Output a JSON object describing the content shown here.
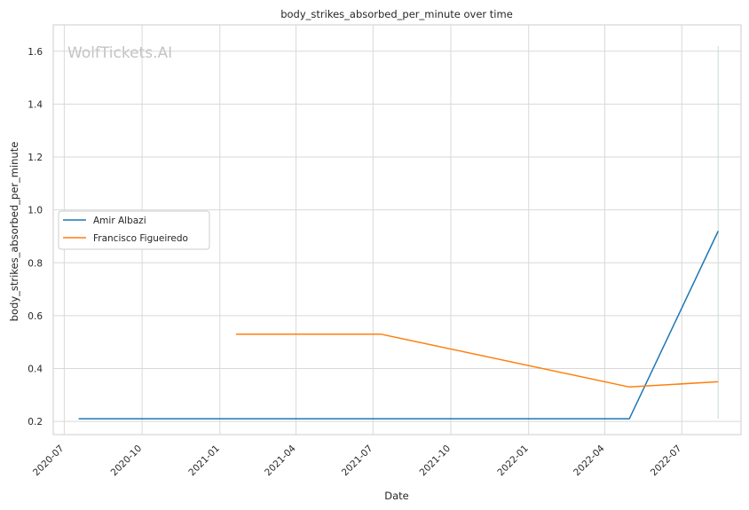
{
  "chart_data": {
    "type": "line",
    "title": "body_strikes_absorbed_per_minute over time",
    "xlabel": "Date",
    "ylabel": "body_strikes_absorbed_per_minute",
    "watermark": "WolfTickets.AI",
    "x_tick_labels": [
      "2020-07",
      "2020-10",
      "2021-01",
      "2021-04",
      "2021-07",
      "2021-10",
      "2022-01",
      "2022-04",
      "2022-07"
    ],
    "y_tick_labels": [
      "0.2",
      "0.4",
      "0.6",
      "0.8",
      "1.0",
      "1.2",
      "1.4",
      "1.6"
    ],
    "y_ticks": [
      0.2,
      0.4,
      0.6,
      0.8,
      1.0,
      1.2,
      1.4,
      1.6
    ],
    "ylim": [
      0.15,
      1.7
    ],
    "xlim": [
      "2020-06-18",
      "2022-09-09"
    ],
    "grid": true,
    "legend_position": "center-left",
    "series": [
      {
        "name": "Amir Albazi",
        "color": "#1f77b4",
        "points": [
          {
            "x": "2020-07-18",
            "y": 0.21
          },
          {
            "x": "2022-04-30",
            "y": 0.21
          },
          {
            "x": "2022-08-13",
            "y": 0.92
          }
        ]
      },
      {
        "name": "Francisco Figueiredo",
        "color": "#ff7f0e",
        "points": [
          {
            "x": "2021-01-20",
            "y": 0.53
          },
          {
            "x": "2021-07-10",
            "y": 0.53
          },
          {
            "x": "2022-04-30",
            "y": 0.33
          },
          {
            "x": "2022-08-13",
            "y": 0.35
          }
        ]
      }
    ],
    "reference_lines": [
      {
        "x": "2022-08-13",
        "y_range": [
          0.21,
          1.62
        ],
        "color": "#c8dcd6"
      }
    ]
  }
}
